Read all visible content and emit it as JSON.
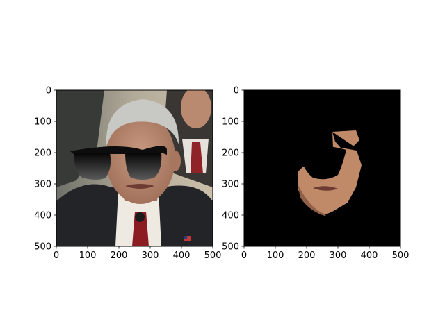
{
  "chart_data": [
    {
      "type": "image",
      "title": "",
      "xlabel": "",
      "ylabel": "",
      "xlim": [
        0,
        500
      ],
      "ylim": [
        500,
        0
      ],
      "xticks": [
        0,
        100,
        200,
        300,
        400,
        500
      ],
      "yticks": [
        0,
        100,
        200,
        300,
        400,
        500
      ],
      "xtick_labels": [
        "0",
        "100",
        "200",
        "300",
        "400",
        "500"
      ],
      "ytick_labels": [
        "0",
        "100",
        "200",
        "300",
        "400",
        "500"
      ],
      "image": {
        "content": "photo of a grey-haired man in dark suit, white shirt and red tie, wearing overlaid black sunglasses; another man in the background at upper right",
        "sunglasses_icon": "sunglasses-icon",
        "colors": {
          "background": "#a9a69a",
          "suit": "#232428",
          "skin": "#b9876f",
          "hair": "#c8c8c4",
          "tie": "#8a1c22",
          "shirt": "#eeeae2"
        }
      }
    },
    {
      "type": "image",
      "title": "",
      "xlabel": "",
      "ylabel": "",
      "xlim": [
        0,
        500
      ],
      "ylim": [
        500,
        0
      ],
      "xticks": [
        0,
        100,
        200,
        300,
        400,
        500
      ],
      "yticks": [
        0,
        100,
        200,
        300,
        400,
        500
      ],
      "xtick_labels": [
        "0",
        "100",
        "200",
        "300",
        "400",
        "500"
      ],
      "ytick_labels": [
        "0",
        "100",
        "200",
        "300",
        "400",
        "500"
      ],
      "image": {
        "content": "black background with only the segmented face region visible, sunglasses area blacked out",
        "colors": {
          "background": "#000000",
          "skin": "#c08a68"
        }
      }
    }
  ]
}
